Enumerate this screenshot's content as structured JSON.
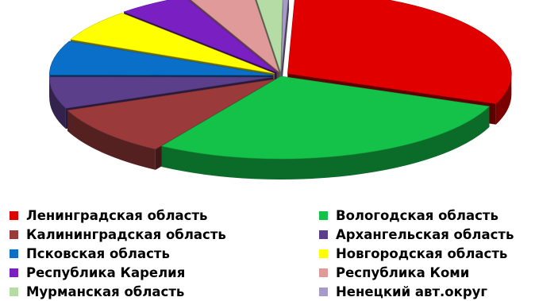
{
  "chart_data": {
    "type": "pie",
    "title": "",
    "legend_position": "bottom",
    "slices": [
      {
        "label": "Ленинградская область",
        "value": 30.4,
        "color": "#e00000",
        "exploded": true
      },
      {
        "label": "Вологодская область",
        "value": 28.0,
        "color": "#14c24a",
        "exploded": false
      },
      {
        "label": "Калининградская область",
        "value": 9.9,
        "color": "#9a3a3a",
        "exploded": true
      },
      {
        "label": "Архангельская область",
        "value": 6.2,
        "color": "#5c3f8a",
        "exploded": true
      },
      {
        "label": "Псковская область",
        "value": 6.7,
        "color": "#0a6fc9",
        "exploded": true
      },
      {
        "label": "Новгородская область",
        "value": 6.3,
        "color": "#ffff00",
        "exploded": true
      },
      {
        "label": "Республика Карелия",
        "value": 5.2,
        "color": "#7a1fc2",
        "exploded": true
      },
      {
        "label": "Республика Коми",
        "value": 4.8,
        "color": "#e09a9a",
        "exploded": true
      },
      {
        "label": "Мурманская область",
        "value": 2.1,
        "color": "#b6dca6",
        "exploded": true
      },
      {
        "label": "Ненецкий авт.округ",
        "value": 0.4,
        "color": "#a89ac8",
        "exploded": true
      }
    ]
  }
}
